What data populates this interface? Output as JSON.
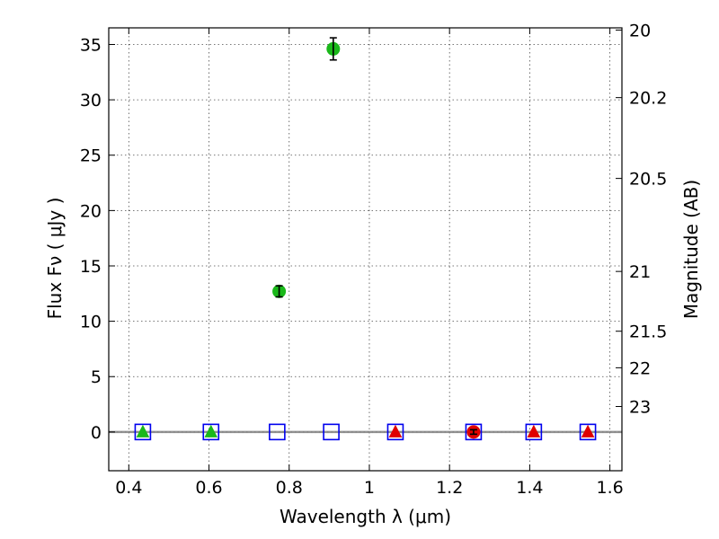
{
  "chart_data": {
    "type": "scatter",
    "xlabel": "Wavelength  λ (μm)",
    "ylabel": "Flux  Fν  ( μJy )",
    "ylabel2": "Magnitude (AB)",
    "xlim": [
      0.35,
      1.63
    ],
    "ylim": [
      -3.5,
      36.5
    ],
    "grid": true,
    "xticks": [
      0.4,
      0.6,
      0.8,
      1.0,
      1.2,
      1.4,
      1.6
    ],
    "xtick_labels": [
      "0.4",
      "0.6",
      "0.8",
      "1",
      "1.2",
      "1.4",
      "1.6"
    ],
    "yticks": [
      0,
      5,
      10,
      15,
      20,
      25,
      30,
      35
    ],
    "ytick_labels": [
      "0",
      "5",
      "10",
      "15",
      "20",
      "25",
      "30",
      "35"
    ],
    "mag_ticks": [
      {
        "label": "20",
        "flux": 36.3
      },
      {
        "label": "20.2",
        "flux": 30.2
      },
      {
        "label": "20.5",
        "flux": 22.9
      },
      {
        "label": "21",
        "flux": 14.5
      },
      {
        "label": "21.5",
        "flux": 9.1
      },
      {
        "label": "22",
        "flux": 5.8
      },
      {
        "label": "23",
        "flux": 2.3
      }
    ],
    "zero_line_color": "#808080",
    "series": [
      {
        "marker": "circle",
        "color": "#1ab81a",
        "points": [
          {
            "x": 0.775,
            "y": 12.7,
            "err": 0.5
          },
          {
            "x": 0.91,
            "y": 34.6,
            "err": 1.0
          }
        ]
      },
      {
        "marker": "triangle",
        "color": "#1ab81a",
        "points": [
          {
            "x": 0.435,
            "y": 0.0
          },
          {
            "x": 0.605,
            "y": 0.0
          }
        ]
      },
      {
        "marker": "triangle",
        "color": "#e00000",
        "points": [
          {
            "x": 1.065,
            "y": 0.0
          },
          {
            "x": 1.41,
            "y": 0.0
          },
          {
            "x": 1.545,
            "y": 0.0
          }
        ]
      },
      {
        "marker": "circle",
        "color": "#e00000",
        "points": [
          {
            "x": 1.26,
            "y": 0.0,
            "err": 0.2
          }
        ]
      },
      {
        "marker": "square-open",
        "color": "#0000ee",
        "points": [
          {
            "x": 0.435,
            "y": 0.0
          },
          {
            "x": 0.605,
            "y": 0.0
          },
          {
            "x": 0.77,
            "y": 0.0
          },
          {
            "x": 0.905,
            "y": 0.0
          },
          {
            "x": 1.065,
            "y": 0.0
          },
          {
            "x": 1.26,
            "y": 0.0
          },
          {
            "x": 1.41,
            "y": 0.0
          },
          {
            "x": 1.545,
            "y": 0.0
          }
        ]
      }
    ]
  }
}
